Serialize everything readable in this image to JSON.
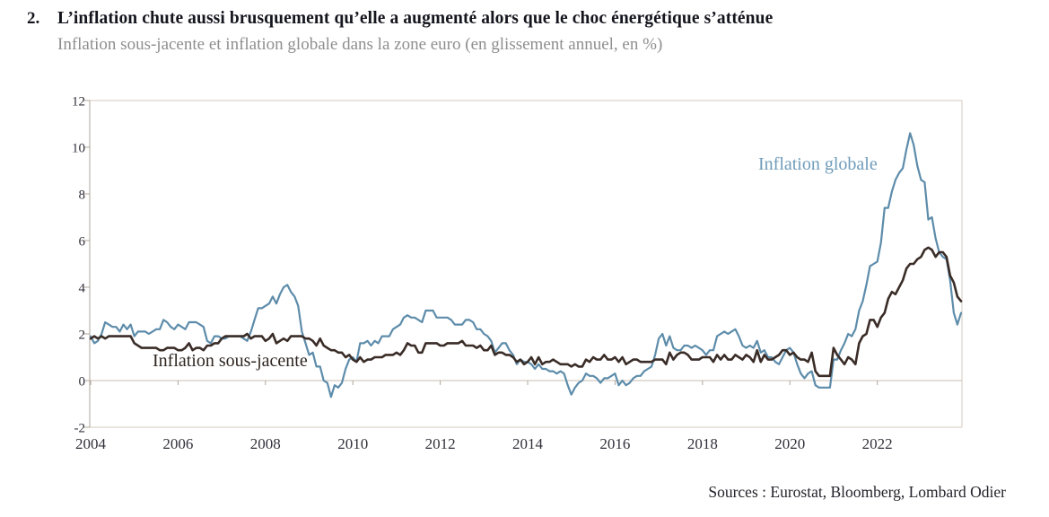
{
  "header": {
    "number": "2.",
    "title": "L’inflation chute aussi brusquement qu’elle a augmenté alors que le choc énergétique s’atténue",
    "subtitle": "Inflation sous-jacente et inflation globale dans la zone euro (en glissement annuel, en %)"
  },
  "footer": {
    "sources": "Sources : Eurostat, Bloomberg, Lombard Odier"
  },
  "chart_data": {
    "type": "line",
    "title": "Inflation sous-jacente et inflation globale dans la zone euro (en glissement annuel, en %)",
    "xlabel": "",
    "ylabel": "",
    "x_start_year": 2004,
    "points_per_year": 12,
    "ylim": [
      -2,
      12
    ],
    "y_ticks": [
      -2,
      0,
      2,
      4,
      6,
      8,
      10,
      12
    ],
    "x_ticks": [
      2004,
      2006,
      2008,
      2010,
      2012,
      2014,
      2016,
      2018,
      2020,
      2022
    ],
    "grid": "zero-line-only",
    "legend_position": "inline-labels",
    "colors": {
      "frame": "#d5cabf",
      "zero_line": "#c9bcb1",
      "axis": "#b0a59a",
      "tick_label": "#31313b",
      "globale": "#5d8caa",
      "sous_jacente": "#3a2c27"
    },
    "series": [
      {
        "name": "Inflation globale",
        "color": "#5d8caa",
        "values": [
          1.9,
          1.6,
          1.7,
          2.0,
          2.5,
          2.4,
          2.3,
          2.3,
          2.1,
          2.4,
          2.2,
          2.4,
          1.9,
          2.1,
          2.1,
          2.1,
          2.0,
          2.1,
          2.2,
          2.2,
          2.6,
          2.5,
          2.3,
          2.2,
          2.4,
          2.3,
          2.2,
          2.5,
          2.5,
          2.5,
          2.4,
          2.3,
          1.7,
          1.6,
          1.9,
          1.9,
          1.8,
          1.8,
          1.9,
          1.9,
          1.9,
          1.9,
          1.8,
          1.7,
          2.1,
          2.6,
          3.1,
          3.1,
          3.2,
          3.3,
          3.6,
          3.3,
          3.7,
          4.0,
          4.1,
          3.8,
          3.6,
          3.2,
          2.1,
          1.6,
          1.1,
          1.2,
          0.6,
          0.6,
          0.0,
          -0.1,
          -0.7,
          -0.2,
          -0.3,
          -0.1,
          0.5,
          0.9,
          1.0,
          0.8,
          1.6,
          1.6,
          1.7,
          1.5,
          1.7,
          1.6,
          1.9,
          1.9,
          1.9,
          2.2,
          2.3,
          2.4,
          2.7,
          2.8,
          2.7,
          2.7,
          2.6,
          2.5,
          3.0,
          3.0,
          3.0,
          2.7,
          2.7,
          2.7,
          2.7,
          2.6,
          2.4,
          2.4,
          2.4,
          2.6,
          2.6,
          2.5,
          2.2,
          2.2,
          2.0,
          1.9,
          1.7,
          1.2,
          1.4,
          1.6,
          1.6,
          1.3,
          1.1,
          0.7,
          0.9,
          0.8,
          0.8,
          0.7,
          0.5,
          0.7,
          0.5,
          0.5,
          0.4,
          0.4,
          0.3,
          0.4,
          0.3,
          -0.2,
          -0.6,
          -0.3,
          -0.1,
          0.0,
          0.3,
          0.2,
          0.2,
          0.1,
          -0.1,
          0.1,
          0.1,
          0.2,
          0.3,
          -0.2,
          0.0,
          -0.2,
          -0.1,
          0.1,
          0.2,
          0.2,
          0.4,
          0.5,
          0.6,
          1.1,
          1.8,
          2.0,
          1.5,
          1.9,
          1.4,
          1.3,
          1.3,
          1.5,
          1.5,
          1.4,
          1.5,
          1.4,
          1.3,
          1.1,
          1.3,
          1.3,
          1.9,
          2.0,
          2.1,
          2.0,
          2.1,
          2.2,
          1.9,
          1.5,
          1.4,
          1.5,
          1.4,
          1.7,
          1.2,
          1.3,
          1.0,
          1.0,
          0.8,
          0.7,
          1.0,
          1.3,
          1.4,
          1.2,
          0.7,
          0.3,
          0.1,
          0.3,
          0.4,
          -0.2,
          -0.3,
          -0.3,
          -0.3,
          -0.3,
          0.9,
          0.9,
          1.3,
          1.6,
          2.0,
          1.9,
          2.2,
          3.0,
          3.4,
          4.1,
          4.9,
          5.0,
          5.1,
          5.9,
          7.4,
          7.4,
          8.1,
          8.6,
          8.9,
          9.1,
          9.9,
          10.6,
          10.1,
          9.2,
          8.6,
          8.5,
          6.9,
          7.0,
          6.1,
          5.5,
          5.3,
          5.2,
          4.3,
          2.9,
          2.4,
          2.9
        ]
      },
      {
        "name": "Inflation sous-jacente",
        "color": "#3a2c27",
        "values": [
          1.8,
          1.9,
          1.8,
          1.9,
          1.8,
          1.9,
          1.9,
          1.9,
          1.9,
          1.9,
          1.9,
          1.9,
          1.6,
          1.5,
          1.4,
          1.4,
          1.4,
          1.4,
          1.4,
          1.3,
          1.3,
          1.4,
          1.4,
          1.4,
          1.3,
          1.3,
          1.4,
          1.6,
          1.3,
          1.4,
          1.4,
          1.3,
          1.5,
          1.5,
          1.6,
          1.6,
          1.8,
          1.9,
          1.9,
          1.9,
          1.9,
          1.9,
          1.9,
          2.0,
          1.8,
          1.9,
          1.9,
          1.9,
          1.7,
          1.8,
          2.0,
          1.6,
          1.7,
          1.8,
          1.7,
          1.9,
          1.9,
          1.9,
          1.9,
          1.8,
          1.8,
          1.7,
          1.5,
          1.8,
          1.5,
          1.4,
          1.3,
          1.3,
          1.2,
          1.2,
          1.0,
          1.1,
          0.9,
          0.8,
          1.0,
          0.8,
          0.9,
          0.9,
          1.0,
          1.0,
          1.0,
          1.1,
          1.1,
          1.1,
          1.2,
          1.1,
          1.3,
          1.6,
          1.5,
          1.5,
          1.2,
          1.2,
          1.6,
          1.6,
          1.6,
          1.6,
          1.5,
          1.5,
          1.6,
          1.6,
          1.6,
          1.6,
          1.7,
          1.5,
          1.5,
          1.5,
          1.4,
          1.5,
          1.3,
          1.3,
          1.5,
          1.1,
          1.2,
          1.2,
          1.1,
          1.1,
          1.0,
          0.8,
          0.9,
          0.7,
          0.8,
          1.0,
          0.7,
          1.0,
          0.7,
          0.8,
          0.8,
          0.9,
          0.8,
          0.7,
          0.7,
          0.7,
          0.6,
          0.7,
          0.6,
          0.6,
          0.9,
          0.8,
          1.0,
          0.9,
          0.9,
          1.1,
          0.9,
          0.9,
          1.0,
          0.8,
          1.0,
          0.7,
          0.8,
          0.9,
          0.9,
          0.8,
          0.8,
          0.8,
          0.8,
          0.9,
          0.9,
          0.9,
          0.7,
          1.2,
          0.9,
          1.1,
          1.2,
          1.2,
          1.1,
          0.9,
          0.9,
          0.9,
          1.0,
          1.0,
          1.0,
          0.8,
          1.1,
          0.9,
          1.1,
          0.9,
          0.9,
          1.1,
          1.0,
          0.9,
          1.1,
          1.0,
          0.8,
          1.3,
          0.8,
          1.1,
          0.9,
          0.9,
          1.0,
          1.1,
          1.3,
          1.3,
          1.1,
          1.2,
          1.0,
          0.9,
          0.9,
          0.8,
          1.2,
          0.4,
          0.2,
          0.2,
          0.2,
          0.2,
          1.4,
          1.1,
          0.9,
          0.7,
          1.0,
          0.9,
          0.7,
          1.6,
          1.9,
          2.0,
          2.6,
          2.6,
          2.3,
          2.7,
          2.9,
          3.5,
          3.8,
          3.7,
          4.0,
          4.3,
          4.8,
          5.0,
          5.0,
          5.2,
          5.3,
          5.6,
          5.7,
          5.6,
          5.3,
          5.5,
          5.5,
          5.3,
          4.5,
          4.2,
          3.6,
          3.4
        ]
      }
    ]
  }
}
